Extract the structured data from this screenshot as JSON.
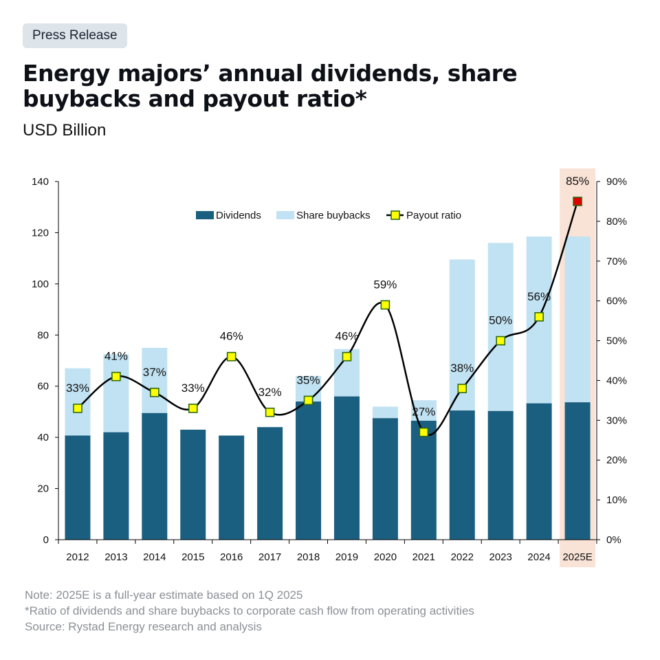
{
  "badge": "Press Release",
  "title": "Energy majors’ annual dividends, share buybacks and payout ratio*",
  "subtitle": "USD Billion",
  "notes": [
    "Note: 2025E is a full-year estimate based on 1Q 2025",
    "*Ratio of dividends and share buybacks to corporate cash flow from operating activities",
    "Source: Rystad Energy research and analysis"
  ],
  "chart_data": {
    "type": "bar",
    "stacked": true,
    "categories": [
      "2012",
      "2013",
      "2014",
      "2015",
      "2016",
      "2017",
      "2018",
      "2019",
      "2020",
      "2021",
      "2022",
      "2023",
      "2024",
      "2025E"
    ],
    "series": [
      {
        "name": "Dividends",
        "color": "#1a5e80",
        "values": [
          40.7,
          42,
          49.5,
          43,
          40.7,
          44,
          54,
          56,
          47.5,
          46.5,
          50.5,
          50.3,
          53.3,
          53.7
        ]
      },
      {
        "name": "Share buybacks",
        "color": "#c1e2f2",
        "values": [
          26.3,
          30.5,
          25.5,
          0,
          0,
          0,
          10,
          18.5,
          4.5,
          8,
          59,
          65.7,
          65.2,
          64.8
        ]
      },
      {
        "name": "Payout ratio",
        "type": "line",
        "axis": "right",
        "color": "#000000",
        "marker_color": "#ffff00",
        "highlight_marker_color": "#e00000",
        "values": [
          33,
          41,
          37,
          33,
          46,
          32,
          35,
          46,
          59,
          27,
          38,
          50,
          56,
          85
        ],
        "labels": [
          "33%",
          "41%",
          "37%",
          "33%",
          "46%",
          "32%",
          "35%",
          "46%",
          "59%",
          "27%",
          "38%",
          "50%",
          "56%",
          "85%"
        ]
      }
    ],
    "y_left": {
      "range": [
        0,
        140
      ],
      "ticks": [
        "0",
        "20",
        "40",
        "60",
        "80",
        "100",
        "120",
        "140"
      ]
    },
    "y_right": {
      "range": [
        0,
        90
      ],
      "ticks": [
        "0%",
        "10%",
        "20%",
        "30%",
        "40%",
        "50%",
        "60%",
        "70%",
        "80%",
        "90%"
      ]
    },
    "highlight_category": "2025E",
    "highlight_color": "#f9e3d6",
    "legend": {
      "position": "top-center",
      "items": [
        "Dividends",
        "Share buybacks",
        "Payout ratio"
      ]
    },
    "grid": false
  }
}
